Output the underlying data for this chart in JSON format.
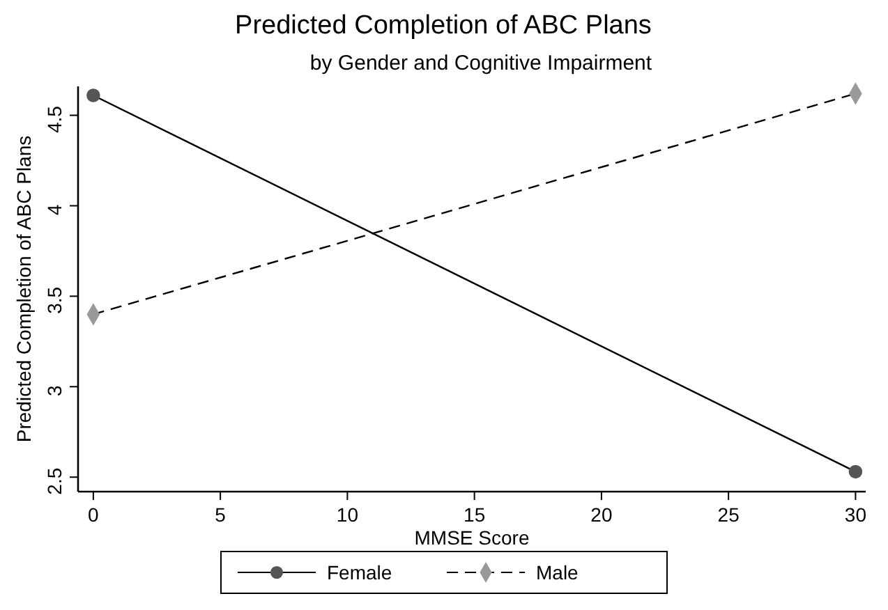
{
  "chart_data": {
    "type": "line",
    "title": "Predicted Completion of ABC Plans",
    "subtitle": "by Gender and Cognitive Impairment",
    "xlabel": "MMSE Score",
    "ylabel": "Predicted Completion of ABC Plans",
    "x": [
      0,
      30
    ],
    "series": [
      {
        "name": "Female",
        "color": "#555555",
        "values": [
          4.61,
          2.53
        ],
        "marker": "circle",
        "line_style": "solid"
      },
      {
        "name": "Male",
        "color": "#999999",
        "values": [
          3.4,
          4.62
        ],
        "marker": "diamond",
        "line_style": "dashed"
      }
    ],
    "xlim": [
      -0.6,
      30.4
    ],
    "xticks": [
      0,
      5,
      10,
      15,
      20,
      25,
      30
    ],
    "ylim": [
      2.42,
      4.66
    ],
    "yticks": [
      2.5,
      3,
      3.5,
      4,
      4.5
    ],
    "grid": false,
    "legend": "bottom"
  }
}
